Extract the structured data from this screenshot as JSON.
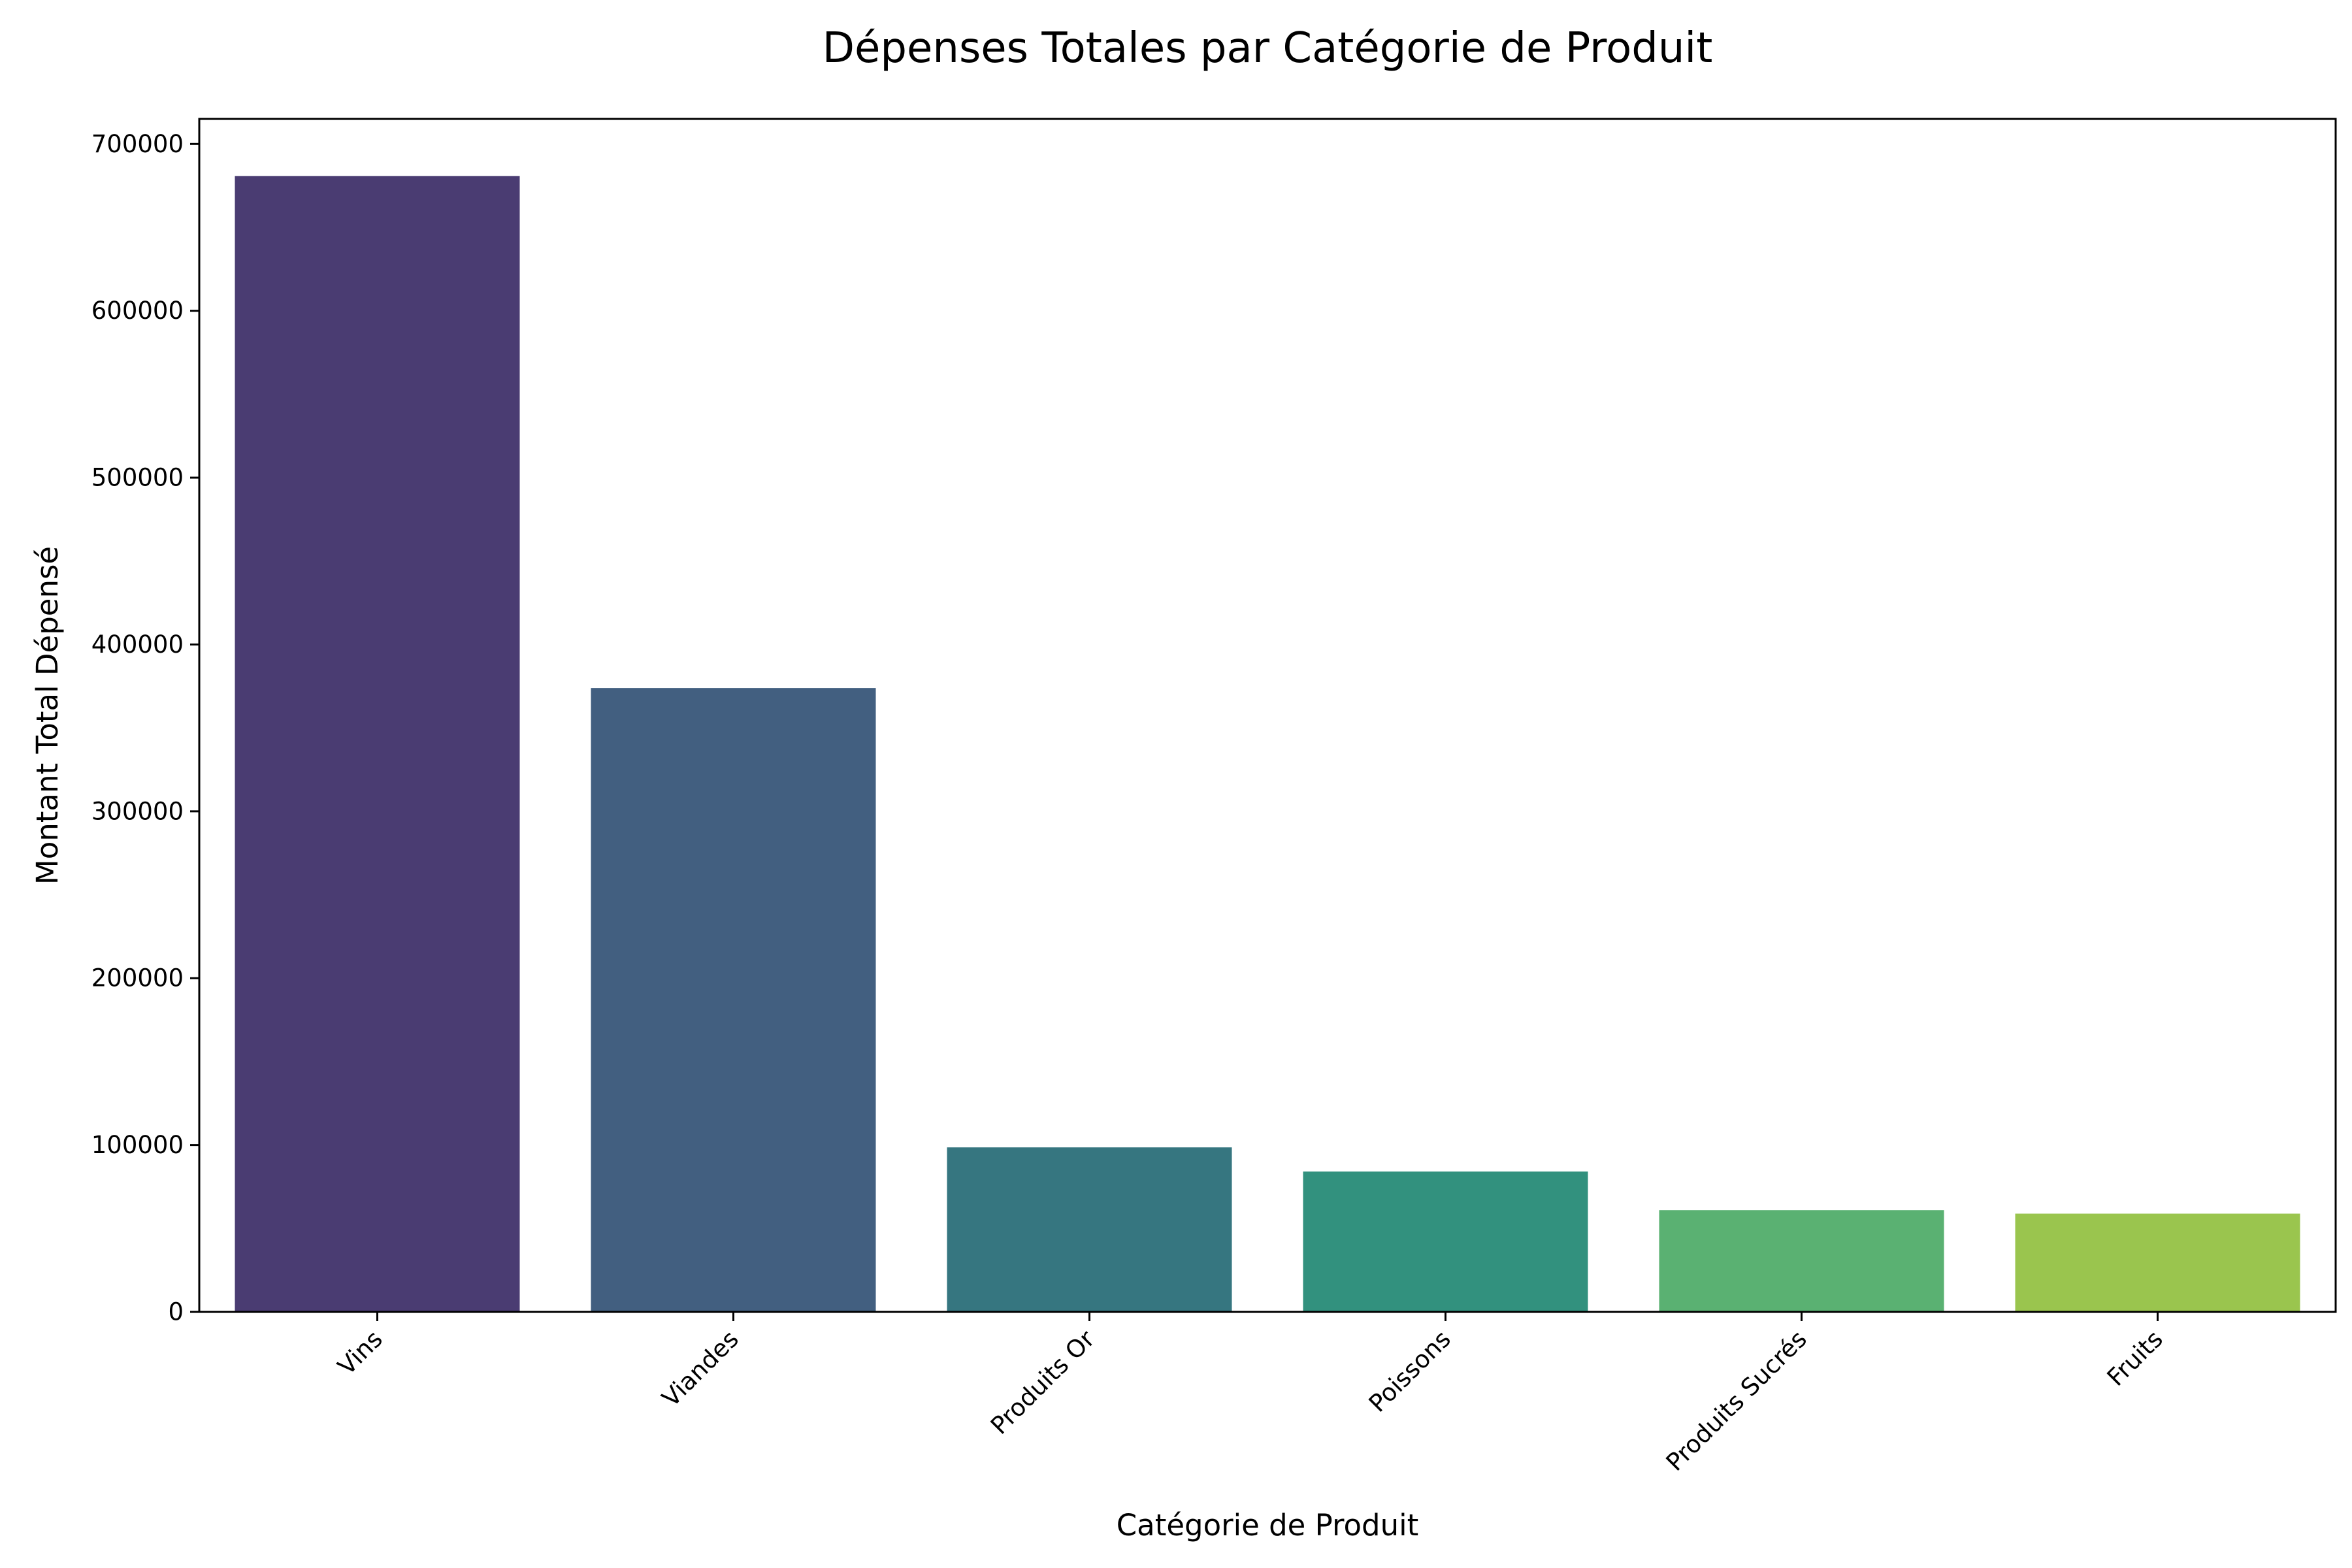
{
  "chart_data": {
    "type": "bar",
    "title": "Dépenses Totales par Catégorie de Produit",
    "xlabel": "Catégorie de Produit",
    "ylabel": "Montant Total Dépensé",
    "categories": [
      "Vins",
      "Viandes",
      "Produits Or",
      "Poissons",
      "Produits Sucrés",
      "Fruits"
    ],
    "values": [
      680800,
      373900,
      98600,
      84100,
      61000,
      58900
    ],
    "colors": [
      "#4a3c72",
      "#425f80",
      "#367680",
      "#32917e",
      "#5ab172",
      "#9ac54e"
    ],
    "ylim": [
      0,
      715000
    ],
    "yticks": [
      0,
      100000,
      200000,
      300000,
      400000,
      500000,
      600000,
      700000
    ],
    "ytick_labels": [
      "0",
      "100000",
      "200000",
      "300000",
      "400000",
      "500000",
      "600000",
      "700000"
    ],
    "grid": false,
    "legend": "none"
  }
}
